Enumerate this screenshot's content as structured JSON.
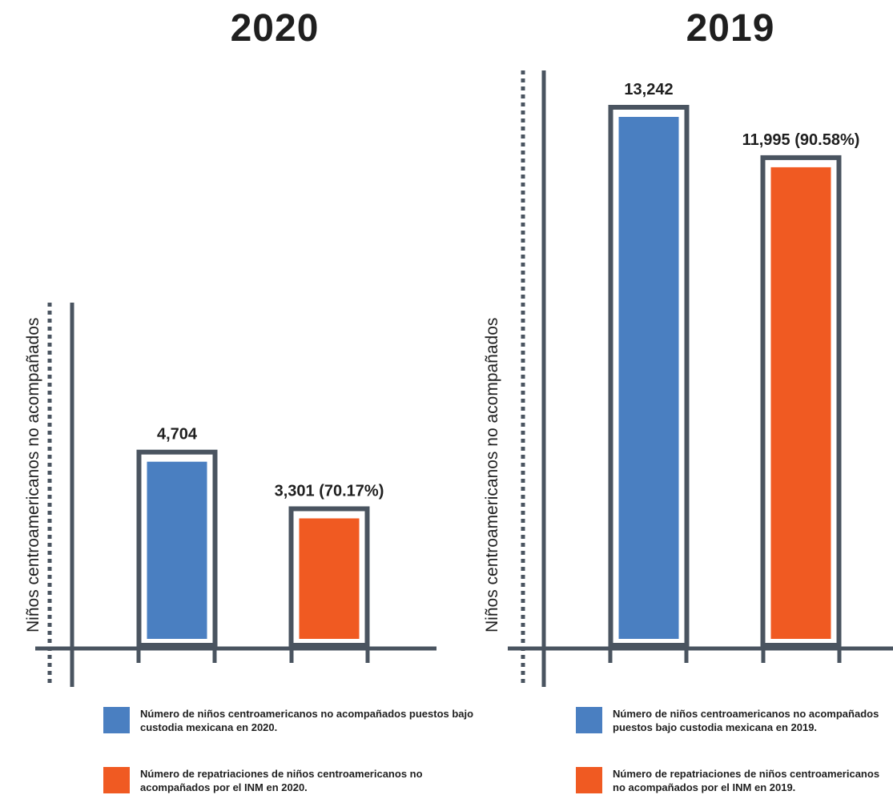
{
  "colors": {
    "axis": "#4a5460",
    "blue": "#4a7fc1",
    "orange": "#f05a22"
  },
  "chart_data": [
    {
      "type": "bar",
      "title": "2020",
      "ylabel": "Niños centroamericanos no acompañados",
      "categories": [
        "Número de niños centroamericanos no acompañados puestos bajo custodia mexicana en 2020.",
        "Número de repatriaciones de niños centroamericanos no acompañados por el INM en 2020."
      ],
      "values": [
        4704,
        3301
      ],
      "data_labels": [
        "4,704",
        "3,301 (70.17%)"
      ],
      "colors": [
        "#4a7fc1",
        "#f05a22"
      ],
      "ylim": [
        0,
        13242
      ],
      "grid": false,
      "legend": {
        "placement": "bottom",
        "items": [
          {
            "color": "#4a7fc1",
            "text": "Número de niños centroamericanos no acompañados puestos bajo custodia mexicana en 2020."
          },
          {
            "color": "#f05a22",
            "text": "Número de repatriaciones de niños centroamericanos no acompañados por el INM en 2020."
          }
        ]
      }
    },
    {
      "type": "bar",
      "title": "2019",
      "ylabel": "Niños centroamericanos no acompañados",
      "categories": [
        "Número de niños centroamericanos no acompañados puestos bajo custodia mexicana en 2019.",
        "Número de repatriaciones de niños centroamericanos no acompañados por el INM en 2019."
      ],
      "values": [
        13242,
        11995
      ],
      "data_labels": [
        "13,242",
        "11,995 (90.58%)"
      ],
      "colors": [
        "#4a7fc1",
        "#f05a22"
      ],
      "ylim": [
        0,
        13242
      ],
      "grid": false,
      "legend": {
        "placement": "bottom",
        "items": [
          {
            "color": "#4a7fc1",
            "text": "Número de niños centroamericanos no acompañados puestos bajo custodia mexicana en 2019."
          },
          {
            "color": "#f05a22",
            "text": "Número de repatriaciones de niños centroamericanos no acompañados por el INM en 2019."
          }
        ]
      }
    }
  ]
}
